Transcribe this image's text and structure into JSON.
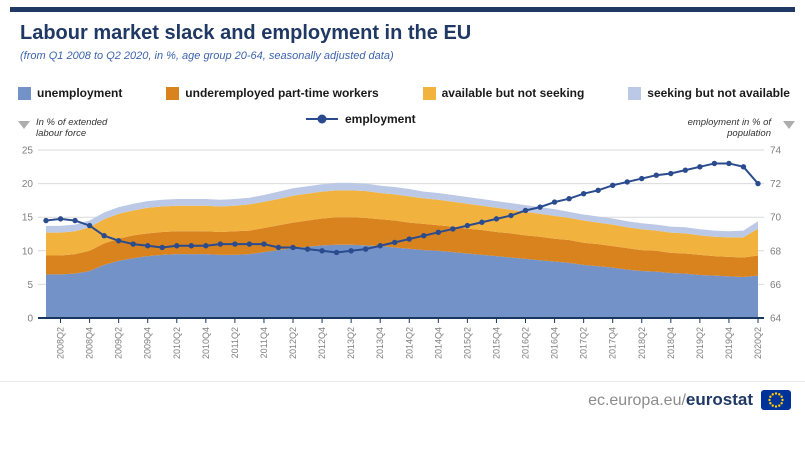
{
  "page": {
    "title": "Labour market slack and employment in the EU",
    "subtitle": "(from Q1 2008 to Q2 2020, in %, age group 20-64, seasonally adjusted data)"
  },
  "colors": {
    "navy": "#1f3864",
    "grid": "#d9d9d9",
    "axis_text": "#7f7f7f",
    "arrow_gray": "#adadad"
  },
  "footer": {
    "domain": "ec.europa.eu/",
    "brand": "eurostat",
    "logo": "eu-flag-icon"
  },
  "chart_data": {
    "type": "area",
    "stacked": true,
    "title": "Labour market slack and employment in the EU",
    "subtitle": "(from Q1 2008 to Q2 2020, in %, age group 20-64, seasonally adjusted data)",
    "grid": true,
    "legend_position": "top",
    "left_axis": {
      "label": "In % of extended labour force",
      "range": [
        0,
        25
      ],
      "ticks": [
        0,
        5,
        10,
        15,
        20,
        25
      ]
    },
    "right_axis": {
      "label": "employment in % of population",
      "range": [
        64,
        74
      ],
      "ticks": [
        64,
        66,
        68,
        70,
        72,
        74
      ]
    },
    "x": [
      "2008Q1",
      "2008Q2",
      "2008Q3",
      "2008Q4",
      "2009Q1",
      "2009Q2",
      "2009Q3",
      "2009Q4",
      "2010Q1",
      "2010Q2",
      "2010Q3",
      "2010Q4",
      "2011Q1",
      "2011Q2",
      "2011Q3",
      "2011Q4",
      "2012Q1",
      "2012Q2",
      "2012Q3",
      "2012Q4",
      "2013Q1",
      "2013Q2",
      "2013Q3",
      "2013Q4",
      "2014Q1",
      "2014Q2",
      "2014Q3",
      "2014Q4",
      "2015Q1",
      "2015Q2",
      "2015Q3",
      "2015Q4",
      "2016Q1",
      "2016Q2",
      "2016Q3",
      "2016Q4",
      "2017Q1",
      "2017Q2",
      "2017Q3",
      "2017Q4",
      "2018Q1",
      "2018Q2",
      "2018Q3",
      "2018Q4",
      "2019Q1",
      "2019Q2",
      "2019Q3",
      "2019Q4",
      "2020Q1",
      "2020Q2"
    ],
    "x_tick_labels": [
      "2008Q2",
      "2008Q4",
      "2009Q2",
      "2009Q4",
      "2010Q2",
      "2010Q4",
      "2011Q2",
      "2011Q4",
      "2012Q2",
      "2012Q4",
      "2013Q2",
      "2013Q4",
      "2014Q2",
      "2014Q4",
      "2015Q2",
      "2015Q4",
      "2016Q2",
      "2016Q4",
      "2017Q2",
      "2017Q4",
      "2018Q2",
      "2018Q4",
      "2019Q2",
      "2019Q4",
      "2020Q2"
    ],
    "series": [
      {
        "name": "unemployment",
        "type": "area",
        "axis": "left",
        "color": "#7292c8",
        "values": [
          6.5,
          6.5,
          6.6,
          7.0,
          7.9,
          8.5,
          8.9,
          9.2,
          9.4,
          9.5,
          9.5,
          9.5,
          9.4,
          9.4,
          9.5,
          9.8,
          10.1,
          10.4,
          10.6,
          10.8,
          10.9,
          10.9,
          10.8,
          10.7,
          10.5,
          10.3,
          10.1,
          10.0,
          9.8,
          9.6,
          9.4,
          9.2,
          9.0,
          8.8,
          8.6,
          8.4,
          8.2,
          7.9,
          7.7,
          7.5,
          7.2,
          7.0,
          6.9,
          6.7,
          6.6,
          6.4,
          6.3,
          6.2,
          6.1,
          6.3
        ]
      },
      {
        "name": "underemployed part-time workers",
        "type": "area",
        "axis": "left",
        "color": "#d9831f",
        "values": [
          2.8,
          2.8,
          2.9,
          3.0,
          3.2,
          3.3,
          3.4,
          3.4,
          3.4,
          3.4,
          3.4,
          3.4,
          3.4,
          3.5,
          3.5,
          3.6,
          3.7,
          3.8,
          3.9,
          4.0,
          4.1,
          4.1,
          4.1,
          4.0,
          4.0,
          3.9,
          3.9,
          3.8,
          3.8,
          3.7,
          3.7,
          3.6,
          3.6,
          3.5,
          3.5,
          3.4,
          3.4,
          3.3,
          3.3,
          3.2,
          3.2,
          3.1,
          3.1,
          3.0,
          3.0,
          3.0,
          2.9,
          2.9,
          2.9,
          3.0
        ]
      },
      {
        "name": "available but not seeking",
        "type": "area",
        "axis": "left",
        "color": "#f2b23e",
        "values": [
          3.4,
          3.4,
          3.4,
          3.5,
          3.6,
          3.7,
          3.7,
          3.8,
          3.8,
          3.8,
          3.8,
          3.8,
          3.8,
          3.8,
          3.9,
          3.9,
          3.9,
          4.0,
          4.0,
          4.0,
          4.0,
          4.0,
          4.0,
          3.9,
          3.9,
          3.9,
          3.8,
          3.8,
          3.7,
          3.7,
          3.6,
          3.6,
          3.5,
          3.5,
          3.4,
          3.4,
          3.3,
          3.3,
          3.2,
          3.2,
          3.1,
          3.1,
          3.0,
          3.0,
          3.0,
          2.9,
          2.9,
          2.9,
          3.0,
          4.0
        ]
      },
      {
        "name": "seeking but not available",
        "type": "area",
        "axis": "left",
        "color": "#bcc9e6",
        "values": [
          1.0,
          1.0,
          1.0,
          1.0,
          1.0,
          1.0,
          1.0,
          1.0,
          1.0,
          1.0,
          1.0,
          1.0,
          1.0,
          1.0,
          1.0,
          1.0,
          1.1,
          1.1,
          1.1,
          1.1,
          1.1,
          1.1,
          1.1,
          1.1,
          1.1,
          1.1,
          1.0,
          1.0,
          1.0,
          1.0,
          1.0,
          1.0,
          1.0,
          1.0,
          1.0,
          1.0,
          0.9,
          0.9,
          0.9,
          0.9,
          0.9,
          0.9,
          0.9,
          0.9,
          0.9,
          0.9,
          0.9,
          0.9,
          1.0,
          1.1
        ]
      },
      {
        "name": "employment",
        "type": "line",
        "axis": "right",
        "color": "#2a4b8d",
        "values": [
          69.8,
          69.9,
          69.8,
          69.5,
          68.9,
          68.6,
          68.4,
          68.3,
          68.2,
          68.3,
          68.3,
          68.3,
          68.4,
          68.4,
          68.4,
          68.4,
          68.2,
          68.2,
          68.1,
          68.0,
          67.9,
          68.0,
          68.1,
          68.3,
          68.5,
          68.7,
          68.9,
          69.1,
          69.3,
          69.5,
          69.7,
          69.9,
          70.1,
          70.4,
          70.6,
          70.9,
          71.1,
          71.4,
          71.6,
          71.9,
          72.1,
          72.3,
          72.5,
          72.6,
          72.8,
          73.0,
          73.2,
          73.2,
          73.0,
          72.0
        ]
      }
    ]
  }
}
